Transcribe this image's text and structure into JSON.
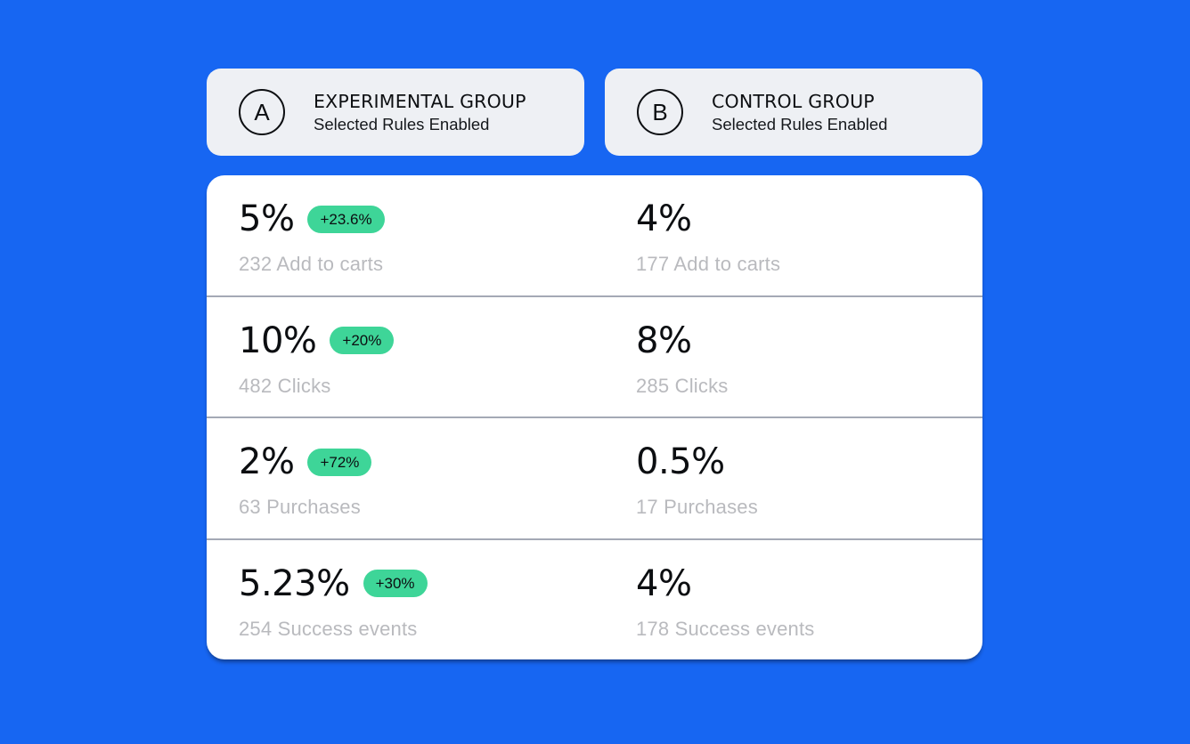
{
  "colors": {
    "background": "#1766F2",
    "group_card_bg": "#EEF0F4",
    "metrics_card_bg": "#FFFFFF",
    "divider": "#A4A9B5",
    "delta_pill_bg": "#3ED598",
    "value_text": "#0C0E11",
    "muted_label_text": "#B9BABE"
  },
  "groups": [
    {
      "badge": "A",
      "title": "EXPERIMENTAL GROUP",
      "subtitle": "Selected Rules Enabled"
    },
    {
      "badge": "B",
      "title": "CONTROL GROUP",
      "subtitle": "Selected Rules Enabled"
    }
  ],
  "metrics": [
    {
      "name": "Add to carts",
      "experimental": {
        "rate": "5%",
        "delta": "+23.6%",
        "label": "232 Add to carts"
      },
      "control": {
        "rate": "4%",
        "label": "177 Add to carts"
      }
    },
    {
      "name": "Clicks",
      "experimental": {
        "rate": "10%",
        "delta": "+20%",
        "label": "482 Clicks"
      },
      "control": {
        "rate": "8%",
        "label": "285 Clicks"
      }
    },
    {
      "name": "Purchases",
      "experimental": {
        "rate": "2%",
        "delta": "+72%",
        "label": "63 Purchases"
      },
      "control": {
        "rate": "0.5%",
        "label": "17 Purchases"
      }
    },
    {
      "name": "Success events",
      "experimental": {
        "rate": "5.23%",
        "delta": "+30%",
        "label": "254 Success events"
      },
      "control": {
        "rate": "4%",
        "label": "178 Success events"
      }
    }
  ]
}
